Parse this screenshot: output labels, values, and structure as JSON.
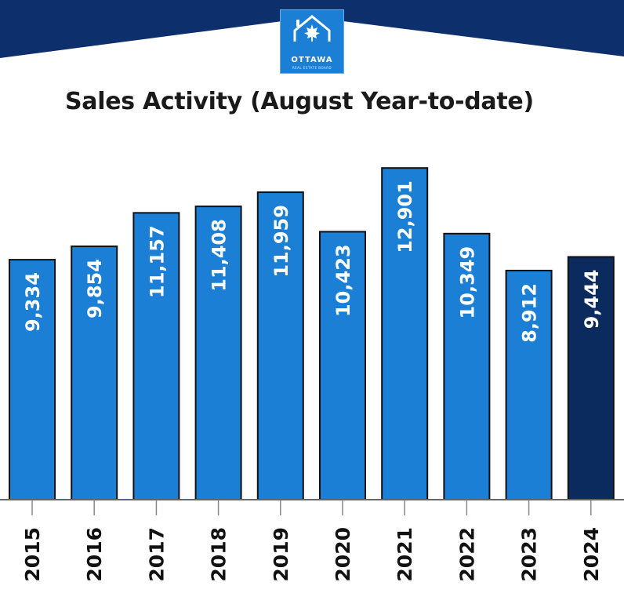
{
  "header": {
    "logo_word": "OTTAWA",
    "logo_subtitle": "REAL ESTATE BOARD",
    "banner_color": "#0d2f6b"
  },
  "chart_data": {
    "type": "bar",
    "title": "Sales Activity (August Year-to-date)",
    "categories": [
      "2015",
      "2016",
      "2017",
      "2018",
      "2019",
      "2020",
      "2021",
      "2022",
      "2023",
      "2024"
    ],
    "values": [
      9334,
      9854,
      11157,
      11408,
      11959,
      10423,
      12901,
      10349,
      8912,
      9444
    ],
    "value_labels": [
      "9,334",
      "9,854",
      "11,157",
      "11,408",
      "11,959",
      "10,423",
      "12,901",
      "10,349",
      "8,912",
      "9,444"
    ],
    "ylim": [
      0,
      13700
    ],
    "highlight_category": "2024",
    "colors": {
      "bar": "#1b7fd6",
      "highlight": "#0b2a5e",
      "outline": "#111111"
    },
    "grid": false,
    "xlabel": "",
    "ylabel": ""
  }
}
